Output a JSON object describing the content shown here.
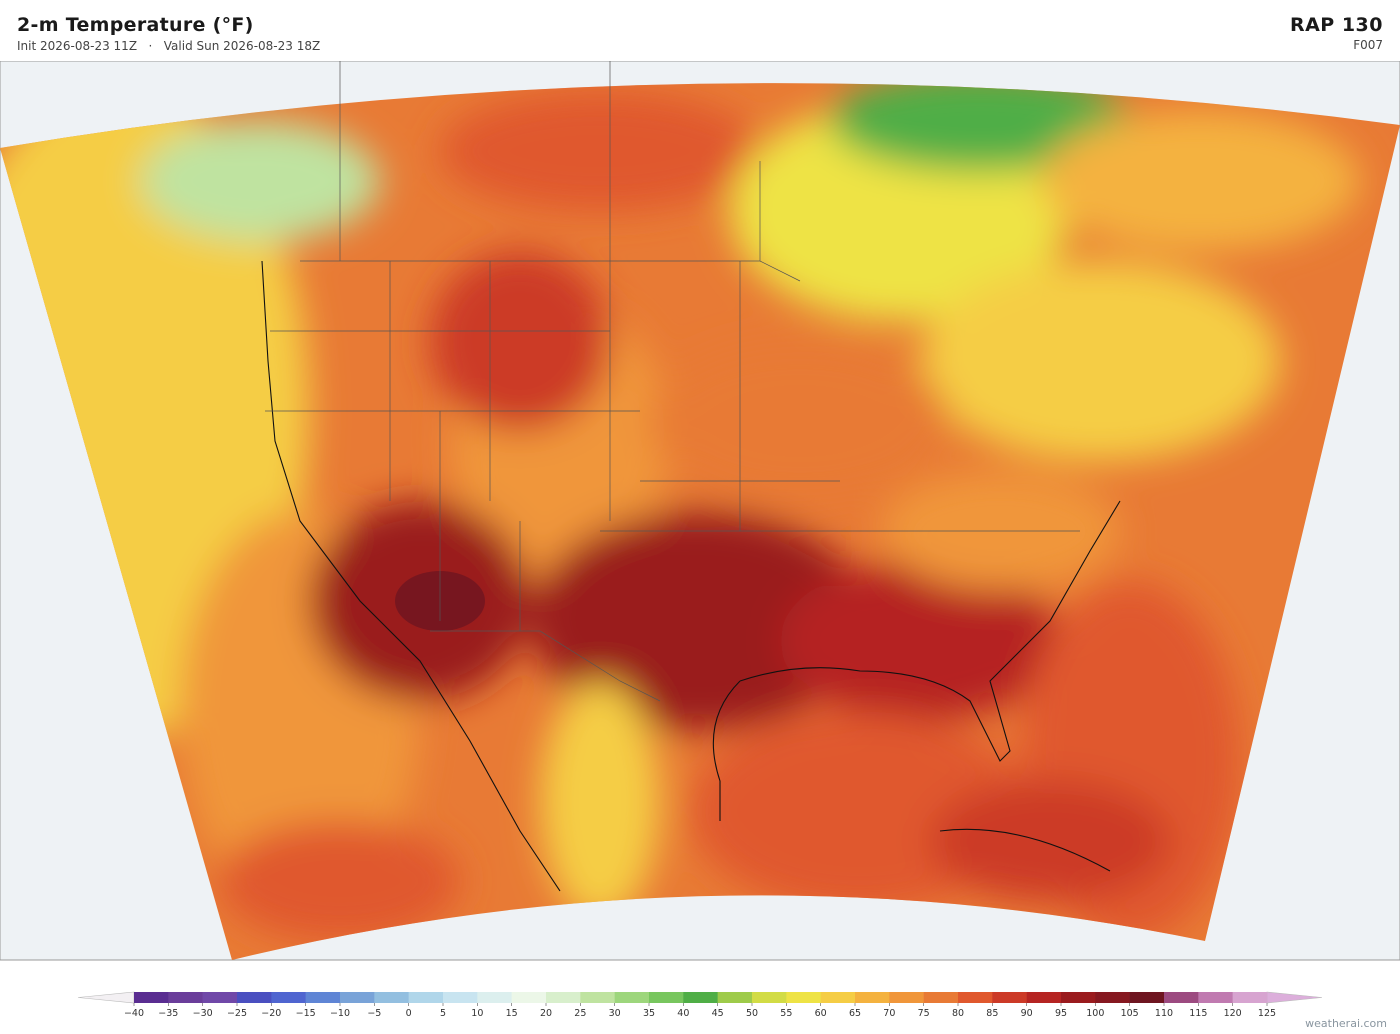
{
  "header": {
    "title": "2-m Temperature  (°F)",
    "init": "Init 2026-08-23 11Z",
    "separator": "·",
    "valid": "Valid Sun 2026-08-23 18Z",
    "model": "RAP  130",
    "forecast_hour": "F007"
  },
  "colorbar": {
    "ticks": [
      {
        "value": -40,
        "label": "−40"
      },
      {
        "value": -35,
        "label": "−35"
      },
      {
        "value": -30,
        "label": "−30"
      },
      {
        "value": -25,
        "label": "−25"
      },
      {
        "value": -20,
        "label": "−20"
      },
      {
        "value": -15,
        "label": "−15"
      },
      {
        "value": -10,
        "label": "−10"
      },
      {
        "value": -5,
        "label": "−5"
      },
      0,
      5,
      10,
      15,
      20,
      25,
      30,
      35,
      40,
      45,
      50,
      55,
      60,
      65,
      70,
      75,
      80,
      85,
      90,
      95,
      100,
      105,
      110,
      115,
      120,
      125
    ],
    "colors": [
      "#5a2d91",
      "#6a3d9a",
      "#7048a8",
      "#4a4fc0",
      "#4f65d0",
      "#5f85d5",
      "#79a3d8",
      "#93bfe0",
      "#b0d6ea",
      "#c8e4f0",
      "#dcefee",
      "#ecf7e8",
      "#d8efcc",
      "#bfe3a0",
      "#9dd67c",
      "#78c65e",
      "#4fae46",
      "#9ecb4a",
      "#d2dc45",
      "#eee345",
      "#f5cd45",
      "#f4b23f",
      "#f0963a",
      "#e87a35",
      "#e0582d",
      "#cc3a27",
      "#b52422",
      "#9a1b1e",
      "#861820",
      "#6e1520",
      "#9c4a80",
      "#c07ab0",
      "#d7a4d0"
    ],
    "under_color": "#f3f0f3",
    "over_color": "#dcaedb"
  },
  "footer": {
    "brand": "weatherai.com"
  }
}
